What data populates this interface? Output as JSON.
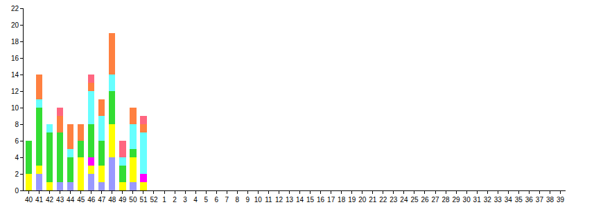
{
  "chart_data": {
    "type": "bar",
    "stacked": true,
    "grid": false,
    "categories": [
      "40",
      "41",
      "42",
      "43",
      "44",
      "45",
      "46",
      "47",
      "48",
      "49",
      "50",
      "51",
      "52",
      "1",
      "2",
      "3",
      "4",
      "5",
      "6",
      "7",
      "8",
      "9",
      "10",
      "11",
      "12",
      "13",
      "14",
      "15",
      "16",
      "17",
      "18",
      "19",
      "20",
      "21",
      "22",
      "23",
      "24",
      "25",
      "26",
      "27",
      "28",
      "29",
      "30",
      "31",
      "32",
      "33",
      "34",
      "35",
      "36",
      "37",
      "38",
      "39"
    ],
    "series": [
      {
        "color": "#9999ff",
        "values": [
          null,
          2,
          null,
          1,
          1,
          null,
          2,
          1,
          4,
          null,
          1,
          null,
          null,
          null,
          null,
          null,
          null,
          null,
          null,
          null,
          null,
          null,
          null,
          null,
          null,
          null,
          null,
          null,
          null,
          null,
          null,
          null,
          null,
          null,
          null,
          null,
          null,
          null,
          null,
          null,
          null,
          null,
          null,
          null,
          null,
          null,
          null,
          null,
          null,
          null,
          null,
          null
        ]
      },
      {
        "color": "#ffff00",
        "values": [
          2,
          1,
          1,
          null,
          null,
          4,
          1,
          2,
          4,
          1,
          3,
          1,
          null,
          null,
          null,
          null,
          null,
          null,
          null,
          null,
          null,
          null,
          null,
          null,
          null,
          null,
          null,
          null,
          null,
          null,
          null,
          null,
          null,
          null,
          null,
          null,
          null,
          null,
          null,
          null,
          null,
          null,
          null,
          null,
          null,
          null,
          null,
          null,
          null,
          null,
          null,
          null
        ]
      },
      {
        "color": "#ff00ff",
        "values": [
          null,
          null,
          null,
          null,
          null,
          null,
          1,
          null,
          null,
          null,
          null,
          1,
          null,
          null,
          null,
          null,
          null,
          null,
          null,
          null,
          null,
          null,
          null,
          null,
          null,
          null,
          null,
          null,
          null,
          null,
          null,
          null,
          null,
          null,
          null,
          null,
          null,
          null,
          null,
          null,
          null,
          null,
          null,
          null,
          null,
          null,
          null,
          null,
          null,
          null,
          null,
          null
        ]
      },
      {
        "color": "#33dd33",
        "values": [
          4,
          7,
          6,
          6,
          3,
          2,
          4,
          3,
          4,
          2,
          1,
          null,
          null,
          null,
          null,
          null,
          null,
          null,
          null,
          null,
          null,
          null,
          null,
          null,
          null,
          null,
          null,
          null,
          null,
          null,
          null,
          null,
          null,
          null,
          null,
          null,
          null,
          null,
          null,
          null,
          null,
          null,
          null,
          null,
          null,
          null,
          null,
          null,
          null,
          null,
          null,
          null
        ]
      },
      {
        "color": "#66ffff",
        "values": [
          null,
          1,
          1,
          null,
          1,
          null,
          4,
          3,
          2,
          1,
          3,
          5,
          null,
          null,
          null,
          null,
          null,
          null,
          null,
          null,
          null,
          null,
          null,
          null,
          null,
          null,
          null,
          null,
          null,
          null,
          null,
          null,
          null,
          null,
          null,
          null,
          null,
          null,
          null,
          null,
          null,
          null,
          null,
          null,
          null,
          null,
          null,
          null,
          null,
          null,
          null,
          null
        ]
      },
      {
        "color": "#ff8040",
        "values": [
          null,
          3,
          null,
          2,
          3,
          2,
          1,
          2,
          5,
          null,
          2,
          1,
          null,
          null,
          null,
          null,
          null,
          null,
          null,
          null,
          null,
          null,
          null,
          null,
          null,
          null,
          null,
          null,
          null,
          null,
          null,
          null,
          null,
          null,
          null,
          null,
          null,
          null,
          null,
          null,
          null,
          null,
          null,
          null,
          null,
          null,
          null,
          null,
          null,
          null,
          null,
          null
        ]
      },
      {
        "color": "#ff6680",
        "values": [
          null,
          null,
          null,
          1,
          null,
          null,
          1,
          null,
          null,
          2,
          null,
          1,
          null,
          null,
          null,
          null,
          null,
          null,
          null,
          null,
          null,
          null,
          null,
          null,
          null,
          null,
          null,
          null,
          null,
          null,
          null,
          null,
          null,
          null,
          null,
          null,
          null,
          null,
          null,
          null,
          null,
          null,
          null,
          null,
          null,
          null,
          null,
          null,
          null,
          null,
          null,
          null
        ]
      }
    ],
    "ylim": [
      0,
      22
    ],
    "yticks": [
      0,
      2,
      4,
      6,
      8,
      10,
      12,
      14,
      16,
      18,
      20,
      22
    ]
  }
}
